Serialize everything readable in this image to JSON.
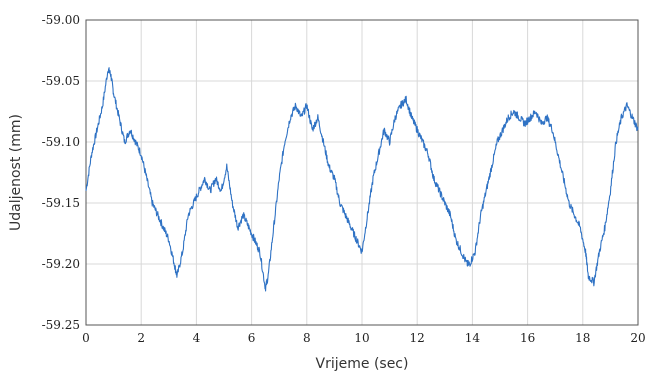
{
  "chart_data": {
    "type": "line",
    "title": "",
    "xlabel": "Vrijeme (sec)",
    "ylabel": "Udaljenost (mm)",
    "xlim": [
      0,
      20
    ],
    "ylim": [
      -59.25,
      -59.0
    ],
    "x_ticks": [
      0,
      2,
      4,
      6,
      8,
      10,
      12,
      14,
      16,
      18,
      20
    ],
    "x_tick_labels": [
      "0",
      "2",
      "4",
      "6",
      "8",
      "10",
      "12",
      "14",
      "16",
      "18",
      "20"
    ],
    "y_ticks": [
      -59.0,
      -59.05,
      -59.1,
      -59.15,
      -59.2,
      -59.25
    ],
    "y_tick_labels": [
      "-59.00",
      "-59.05",
      "-59.10",
      "-59.15",
      "-59.20",
      "-59.25"
    ],
    "grid": true,
    "legend": "none",
    "series": [
      {
        "color": "#2f72c4",
        "x": [
          0,
          0.2,
          0.4,
          0.6,
          0.8,
          0.9,
          1.0,
          1.2,
          1.4,
          1.6,
          1.8,
          2.0,
          2.2,
          2.4,
          2.6,
          2.8,
          3.0,
          3.2,
          3.3,
          3.5,
          3.7,
          3.9,
          4.1,
          4.3,
          4.5,
          4.7,
          4.9,
          5.1,
          5.3,
          5.5,
          5.7,
          5.9,
          6.1,
          6.3,
          6.5,
          6.6,
          6.8,
          7.0,
          7.2,
          7.4,
          7.6,
          7.8,
          8.0,
          8.2,
          8.4,
          8.6,
          8.8,
          9.0,
          9.2,
          9.4,
          9.6,
          9.8,
          10.0,
          10.2,
          10.4,
          10.6,
          10.8,
          11.0,
          11.2,
          11.4,
          11.6,
          11.8,
          12.0,
          12.2,
          12.4,
          12.6,
          12.8,
          13.0,
          13.2,
          13.4,
          13.6,
          13.8,
          13.9,
          14.1,
          14.3,
          14.5,
          14.7,
          14.9,
          15.1,
          15.3,
          15.5,
          15.7,
          15.9,
          16.1,
          16.3,
          16.5,
          16.7,
          16.9,
          17.1,
          17.3,
          17.5,
          17.7,
          17.9,
          18.1,
          18.2,
          18.4,
          18.6,
          18.8,
          19.0,
          19.2,
          19.4,
          19.6,
          19.8,
          20.0
        ],
        "y": [
          -59.14,
          -59.11,
          -59.09,
          -59.07,
          -59.04,
          -59.045,
          -59.06,
          -59.08,
          -59.1,
          -59.09,
          -59.1,
          -59.11,
          -59.13,
          -59.15,
          -59.16,
          -59.17,
          -59.18,
          -59.2,
          -59.21,
          -59.19,
          -59.16,
          -59.15,
          -59.14,
          -59.13,
          -59.14,
          -59.13,
          -59.14,
          -59.12,
          -59.15,
          -59.17,
          -59.16,
          -59.17,
          -59.18,
          -59.19,
          -59.22,
          -59.21,
          -59.17,
          -59.13,
          -59.1,
          -59.08,
          -59.07,
          -59.08,
          -59.07,
          -59.09,
          -59.08,
          -59.1,
          -59.12,
          -59.13,
          -59.15,
          -59.16,
          -59.17,
          -59.18,
          -59.19,
          -59.16,
          -59.13,
          -59.11,
          -59.09,
          -59.1,
          -59.08,
          -59.07,
          -59.065,
          -59.08,
          -59.09,
          -59.1,
          -59.11,
          -59.13,
          -59.14,
          -59.15,
          -59.16,
          -59.18,
          -59.19,
          -59.2,
          -59.2,
          -59.19,
          -59.16,
          -59.14,
          -59.12,
          -59.1,
          -59.09,
          -59.08,
          -59.075,
          -59.08,
          -59.085,
          -59.08,
          -59.075,
          -59.085,
          -59.08,
          -59.09,
          -59.11,
          -59.13,
          -59.15,
          -59.16,
          -59.17,
          -59.19,
          -59.21,
          -59.215,
          -59.19,
          -59.17,
          -59.14,
          -59.1,
          -59.08,
          -59.07,
          -59.08,
          -59.09
        ]
      }
    ]
  }
}
